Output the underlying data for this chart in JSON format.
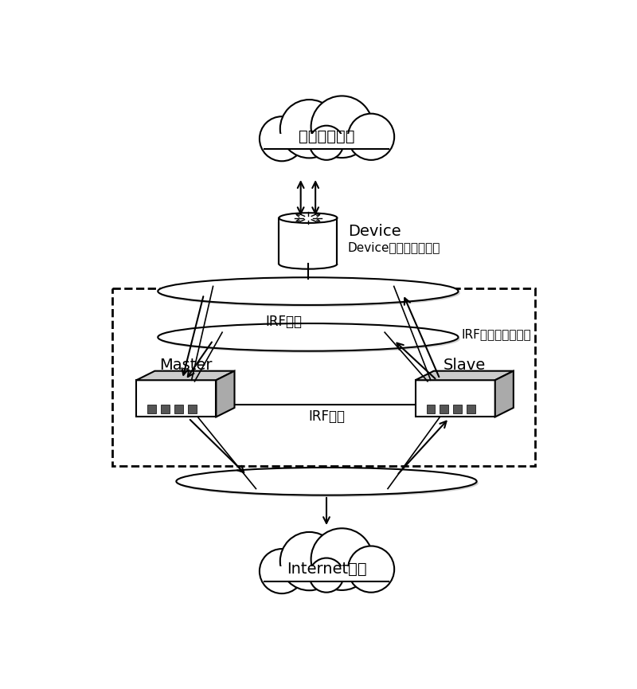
{
  "bg_color": "#ffffff",
  "line_color": "#000000",
  "cloud_top_label": "用户终端网络",
  "cloud_bottom_label": "Internet网络",
  "device_label": "Device",
  "device_label2": "Device上的动态聚合组",
  "master_label": "Master",
  "slave_label": "Slave",
  "irf_label": "IRF设备",
  "irf_agg_label": "IRF上的动态聚合组",
  "irf_link_label": "IRF链路"
}
